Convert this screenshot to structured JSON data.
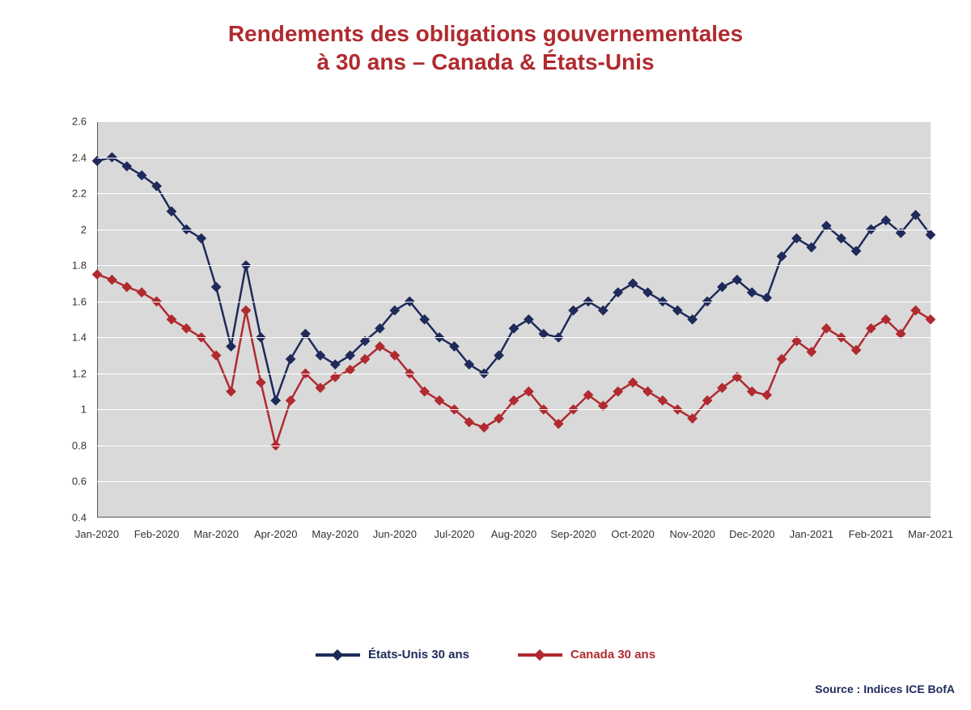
{
  "title_line1": "Rendements des obligations gouvernementales",
  "title_line2": "à 30 ans – Canada & États-Unis",
  "title_color": "#b02a2f",
  "title_fontsize": 28,
  "source_label": "Source : Indices ICE BofA",
  "source_color": "#1f2a5a",
  "chart": {
    "type": "line",
    "background_color": "#d9d9d9",
    "gridline_color": "#ffffff",
    "axis_color": "#555555",
    "y": {
      "min": 0.4,
      "max": 2.6,
      "ticks": [
        0.4,
        0.6,
        0.8,
        1.0,
        1.2,
        1.4,
        1.6,
        1.8,
        2.0,
        2.2,
        2.4,
        2.6
      ],
      "tick_labels": [
        "0.4",
        "0.6",
        "0.8",
        "1",
        "1.2",
        "1.4",
        "1.6",
        "1.8",
        "2",
        "2.2",
        "2.4",
        "2.6"
      ]
    },
    "x": {
      "labels": [
        "Jan-2020",
        "Feb-2020",
        "Mar-2020",
        "Apr-2020",
        "May-2020",
        "Jun-2020",
        "Jul-2020",
        "Aug-2020",
        "Sep-2020",
        "Oct-2020",
        "Nov-2020",
        "Dec-2020",
        "Jan-2021",
        "Feb-2021",
        "Mar-2021"
      ]
    },
    "series": [
      {
        "name": "États-Unis 30 ans",
        "color": "#1f2a5a",
        "line_width": 2.5,
        "marker": "diamond",
        "marker_size": 9,
        "values": [
          2.38,
          2.4,
          2.35,
          2.3,
          2.24,
          2.1,
          2.0,
          1.95,
          1.68,
          1.35,
          1.8,
          1.4,
          1.05,
          1.28,
          1.42,
          1.3,
          1.25,
          1.3,
          1.38,
          1.45,
          1.55,
          1.6,
          1.5,
          1.4,
          1.35,
          1.25,
          1.2,
          1.3,
          1.45,
          1.5,
          1.42,
          1.4,
          1.55,
          1.6,
          1.55,
          1.65,
          1.7,
          1.65,
          1.6,
          1.55,
          1.5,
          1.6,
          1.68,
          1.72,
          1.65,
          1.62,
          1.85,
          1.95,
          1.9,
          2.02,
          1.95,
          1.88,
          2.0,
          2.05,
          1.98,
          2.08,
          1.97
        ]
      },
      {
        "name": "Canada 30 ans",
        "color": "#b02a2f",
        "line_width": 2.5,
        "marker": "diamond",
        "marker_size": 9,
        "values": [
          1.75,
          1.72,
          1.68,
          1.65,
          1.6,
          1.5,
          1.45,
          1.4,
          1.3,
          1.1,
          1.55,
          1.15,
          0.8,
          1.05,
          1.2,
          1.12,
          1.18,
          1.22,
          1.28,
          1.35,
          1.3,
          1.2,
          1.1,
          1.05,
          1.0,
          0.93,
          0.9,
          0.95,
          1.05,
          1.1,
          1.0,
          0.92,
          1.0,
          1.08,
          1.02,
          1.1,
          1.15,
          1.1,
          1.05,
          1.0,
          0.95,
          1.05,
          1.12,
          1.18,
          1.1,
          1.08,
          1.28,
          1.38,
          1.32,
          1.45,
          1.4,
          1.33,
          1.45,
          1.5,
          1.42,
          1.55,
          1.5
        ]
      }
    ],
    "legend_labels": [
      "États-Unis 30 ans",
      "Canada 30 ans"
    ]
  }
}
